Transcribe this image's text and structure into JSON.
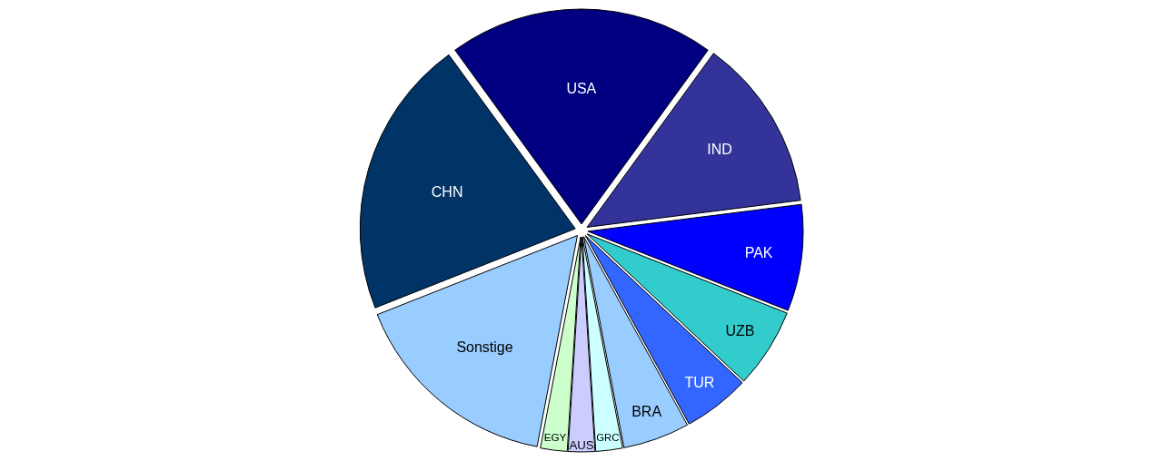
{
  "chart_data": {
    "type": "pie",
    "categories": [
      "USA",
      "IND",
      "PAK",
      "UZB",
      "TUR",
      "BRA",
      "GRC",
      "AUS",
      "EGY",
      "Sonstige",
      "CHN"
    ],
    "values": [
      20,
      13,
      8,
      6,
      5,
      5,
      2,
      2,
      2,
      16,
      21
    ],
    "colors": [
      "#000080",
      "#333399",
      "#0000ff",
      "#33cccc",
      "#3366ff",
      "#99ccff",
      "#ccffff",
      "#ccccff",
      "#ccffcc",
      "#99ccff",
      "#003366"
    ],
    "legend": false
  }
}
